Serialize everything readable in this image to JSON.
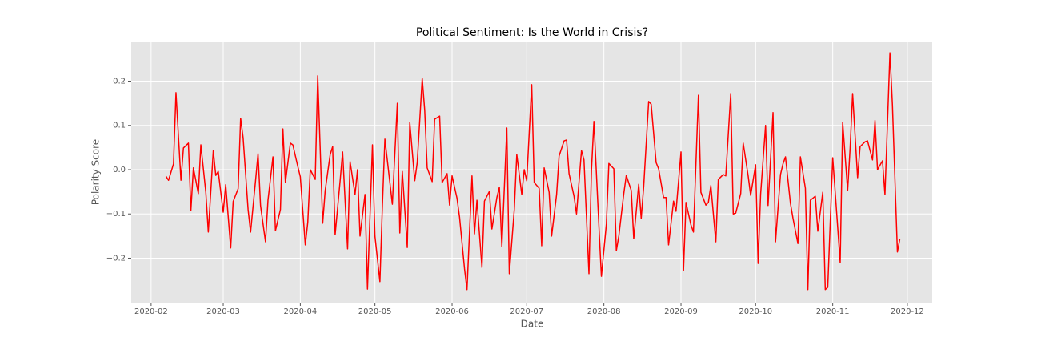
{
  "chart_data": {
    "type": "line",
    "title": "Political Sentiment: Is the World in Crisis?",
    "x_label": "Date",
    "y_label": "Polarity Score",
    "color": "#ff0000",
    "grid": true,
    "xlim": [
      "2020-01-24",
      "2020-12-11"
    ],
    "xticks": [
      "2020-02",
      "2020-03",
      "2020-04",
      "2020-05",
      "2020-06",
      "2020-07",
      "2020-08",
      "2020-09",
      "2020-10",
      "2020-11",
      "2020-12"
    ],
    "ylim": [
      -0.3005,
      0.2878
    ],
    "yticks": [
      {
        "value": -0.2,
        "label": "−0.2"
      },
      {
        "value": -0.1,
        "label": "−0.1"
      },
      {
        "value": 0,
        "label": "0.0"
      },
      0.1,
      0.2
    ],
    "x": [
      "2020-02-07",
      "2020-02-08",
      "2020-02-10",
      "2020-02-11",
      "2020-02-13",
      "2020-02-14",
      "2020-02-16",
      "2020-02-17",
      "2020-02-18",
      "2020-02-20",
      "2020-02-21",
      "2020-02-23",
      "2020-02-24",
      "2020-02-26",
      "2020-02-27",
      "2020-02-28",
      "2020-03-01",
      "2020-03-02",
      "2020-03-04",
      "2020-03-05",
      "2020-03-07",
      "2020-03-08",
      "2020-03-09",
      "2020-03-11",
      "2020-03-12",
      "2020-03-14",
      "2020-03-15",
      "2020-03-16",
      "2020-03-18",
      "2020-03-19",
      "2020-03-21",
      "2020-03-22",
      "2020-03-24",
      "2020-03-25",
      "2020-03-26",
      "2020-03-28",
      "2020-03-29",
      "2020-03-31",
      "2020-04-01",
      "2020-04-03",
      "2020-04-04",
      "2020-04-05",
      "2020-04-07",
      "2020-04-08",
      "2020-04-10",
      "2020-04-11",
      "2020-04-13",
      "2020-04-14",
      "2020-04-15",
      "2020-04-17",
      "2020-04-18",
      "2020-04-20",
      "2020-04-21",
      "2020-04-23",
      "2020-04-24",
      "2020-04-25",
      "2020-04-27",
      "2020-04-28",
      "2020-04-30",
      "2020-05-01",
      "2020-05-03",
      "2020-05-04",
      "2020-05-05",
      "2020-05-07",
      "2020-05-08",
      "2020-05-10",
      "2020-05-11",
      "2020-05-12",
      "2020-05-14",
      "2020-05-15",
      "2020-05-17",
      "2020-05-18",
      "2020-05-20",
      "2020-05-21",
      "2020-05-22",
      "2020-05-24",
      "2020-05-25",
      "2020-05-27",
      "2020-05-28",
      "2020-05-30",
      "2020-05-31",
      "2020-06-01",
      "2020-06-03",
      "2020-06-04",
      "2020-06-06",
      "2020-06-07",
      "2020-06-09",
      "2020-06-10",
      "2020-06-11",
      "2020-06-13",
      "2020-06-14",
      "2020-06-16",
      "2020-06-17",
      "2020-06-19",
      "2020-06-20",
      "2020-06-21",
      "2020-06-23",
      "2020-06-24",
      "2020-06-26",
      "2020-06-27",
      "2020-06-29",
      "2020-06-30",
      "2020-07-01",
      "2020-07-03",
      "2020-07-04",
      "2020-07-06",
      "2020-07-07",
      "2020-07-08",
      "2020-07-10",
      "2020-07-11",
      "2020-07-13",
      "2020-07-14",
      "2020-07-16",
      "2020-07-17",
      "2020-07-18",
      "2020-07-20",
      "2020-07-21",
      "2020-07-23",
      "2020-07-24",
      "2020-07-26",
      "2020-07-27",
      "2020-07-28",
      "2020-07-30",
      "2020-07-31",
      "2020-08-02",
      "2020-08-03",
      "2020-08-05",
      "2020-08-06",
      "2020-08-07",
      "2020-08-09",
      "2020-08-10",
      "2020-08-12",
      "2020-08-13",
      "2020-08-15",
      "2020-08-16",
      "2020-08-17",
      "2020-08-19",
      "2020-08-20",
      "2020-08-22",
      "2020-08-23",
      "2020-08-25",
      "2020-08-26",
      "2020-08-27",
      "2020-08-29",
      "2020-08-30",
      "2020-09-01",
      "2020-09-02",
      "2020-09-03",
      "2020-09-05",
      "2020-09-06",
      "2020-09-08",
      "2020-09-09",
      "2020-09-11",
      "2020-09-12",
      "2020-09-13",
      "2020-09-15",
      "2020-09-16",
      "2020-09-18",
      "2020-09-19",
      "2020-09-21",
      "2020-09-22",
      "2020-09-23",
      "2020-09-25",
      "2020-09-26",
      "2020-09-28",
      "2020-09-29",
      "2020-10-01",
      "2020-10-02",
      "2020-10-03",
      "2020-10-05",
      "2020-10-06",
      "2020-10-08",
      "2020-10-09",
      "2020-10-11",
      "2020-10-12",
      "2020-10-13",
      "2020-10-15",
      "2020-10-16",
      "2020-10-18",
      "2020-10-19",
      "2020-10-21",
      "2020-10-22",
      "2020-10-23",
      "2020-10-25",
      "2020-10-26",
      "2020-10-28",
      "2020-10-29",
      "2020-10-30",
      "2020-11-01",
      "2020-11-02",
      "2020-11-04",
      "2020-11-05",
      "2020-11-07",
      "2020-11-08",
      "2020-11-09",
      "2020-11-11",
      "2020-11-12",
      "2020-11-14",
      "2020-11-15",
      "2020-11-17",
      "2020-11-18",
      "2020-11-19",
      "2020-11-21",
      "2020-11-22",
      "2020-11-24",
      "2020-11-25",
      "2020-11-27",
      "2020-11-28"
    ],
    "values": [
      -0.015,
      -0.024,
      0.013,
      0.174,
      -0.024,
      0.049,
      0.06,
      -0.092,
      0.004,
      -0.054,
      0.056,
      -0.051,
      -0.141,
      0.043,
      -0.013,
      -0.004,
      -0.096,
      -0.034,
      -0.177,
      -0.072,
      -0.043,
      0.116,
      0.072,
      -0.09,
      -0.141,
      -0.025,
      0.036,
      -0.081,
      -0.163,
      -0.069,
      0.029,
      -0.138,
      -0.09,
      0.092,
      -0.029,
      0.06,
      0.056,
      0.007,
      -0.016,
      -0.17,
      -0.119,
      0.0,
      -0.022,
      0.212,
      -0.121,
      -0.047,
      0.034,
      0.052,
      -0.147,
      -0.025,
      0.04,
      -0.179,
      0.018,
      -0.056,
      0.0,
      -0.15,
      -0.056,
      -0.27,
      0.056,
      -0.15,
      -0.253,
      -0.081,
      0.069,
      -0.029,
      -0.078,
      0.15,
      -0.143,
      -0.004,
      -0.176,
      0.107,
      -0.025,
      0.016,
      0.206,
      0.134,
      0.004,
      -0.027,
      0.114,
      0.121,
      -0.029,
      -0.009,
      -0.08,
      -0.014,
      -0.065,
      -0.107,
      -0.224,
      -0.271,
      -0.014,
      -0.145,
      -0.069,
      -0.221,
      -0.071,
      -0.049,
      -0.134,
      -0.063,
      -0.04,
      -0.174,
      0.094,
      -0.235,
      -0.09,
      0.034,
      -0.056,
      0.0,
      -0.025,
      0.192,
      -0.029,
      -0.042,
      -0.172,
      0.004,
      -0.051,
      -0.15,
      -0.056,
      0.031,
      0.065,
      0.067,
      -0.009,
      -0.06,
      -0.1,
      0.043,
      0.022,
      -0.235,
      -0.002,
      0.109,
      -0.127,
      -0.241,
      -0.123,
      0.014,
      0.002,
      -0.183,
      -0.15,
      -0.054,
      -0.013,
      -0.047,
      -0.156,
      -0.033,
      -0.11,
      -0.038,
      0.154,
      0.148,
      0.016,
      0.002,
      -0.063,
      -0.063,
      -0.17,
      -0.071,
      -0.094,
      0.04,
      -0.228,
      -0.074,
      -0.125,
      -0.141,
      0.168,
      -0.051,
      -0.08,
      -0.074,
      -0.036,
      -0.163,
      -0.022,
      -0.011,
      -0.014,
      0.172,
      -0.1,
      -0.098,
      -0.054,
      0.06,
      -0.014,
      -0.058,
      0.011,
      -0.212,
      -0.056,
      0.1,
      -0.081,
      0.129,
      -0.163,
      -0.011,
      0.013,
      0.029,
      -0.076,
      -0.109,
      -0.167,
      0.029,
      -0.042,
      -0.271,
      -0.069,
      -0.06,
      -0.139,
      -0.051,
      -0.271,
      -0.266,
      0.027,
      -0.051,
      -0.21,
      0.107,
      -0.047,
      0.049,
      0.172,
      -0.018,
      0.052,
      0.063,
      0.065,
      0.022,
      0.111,
      0.0,
      0.02,
      -0.056,
      0.264,
      0.147,
      -0.186,
      -0.156
    ]
  }
}
